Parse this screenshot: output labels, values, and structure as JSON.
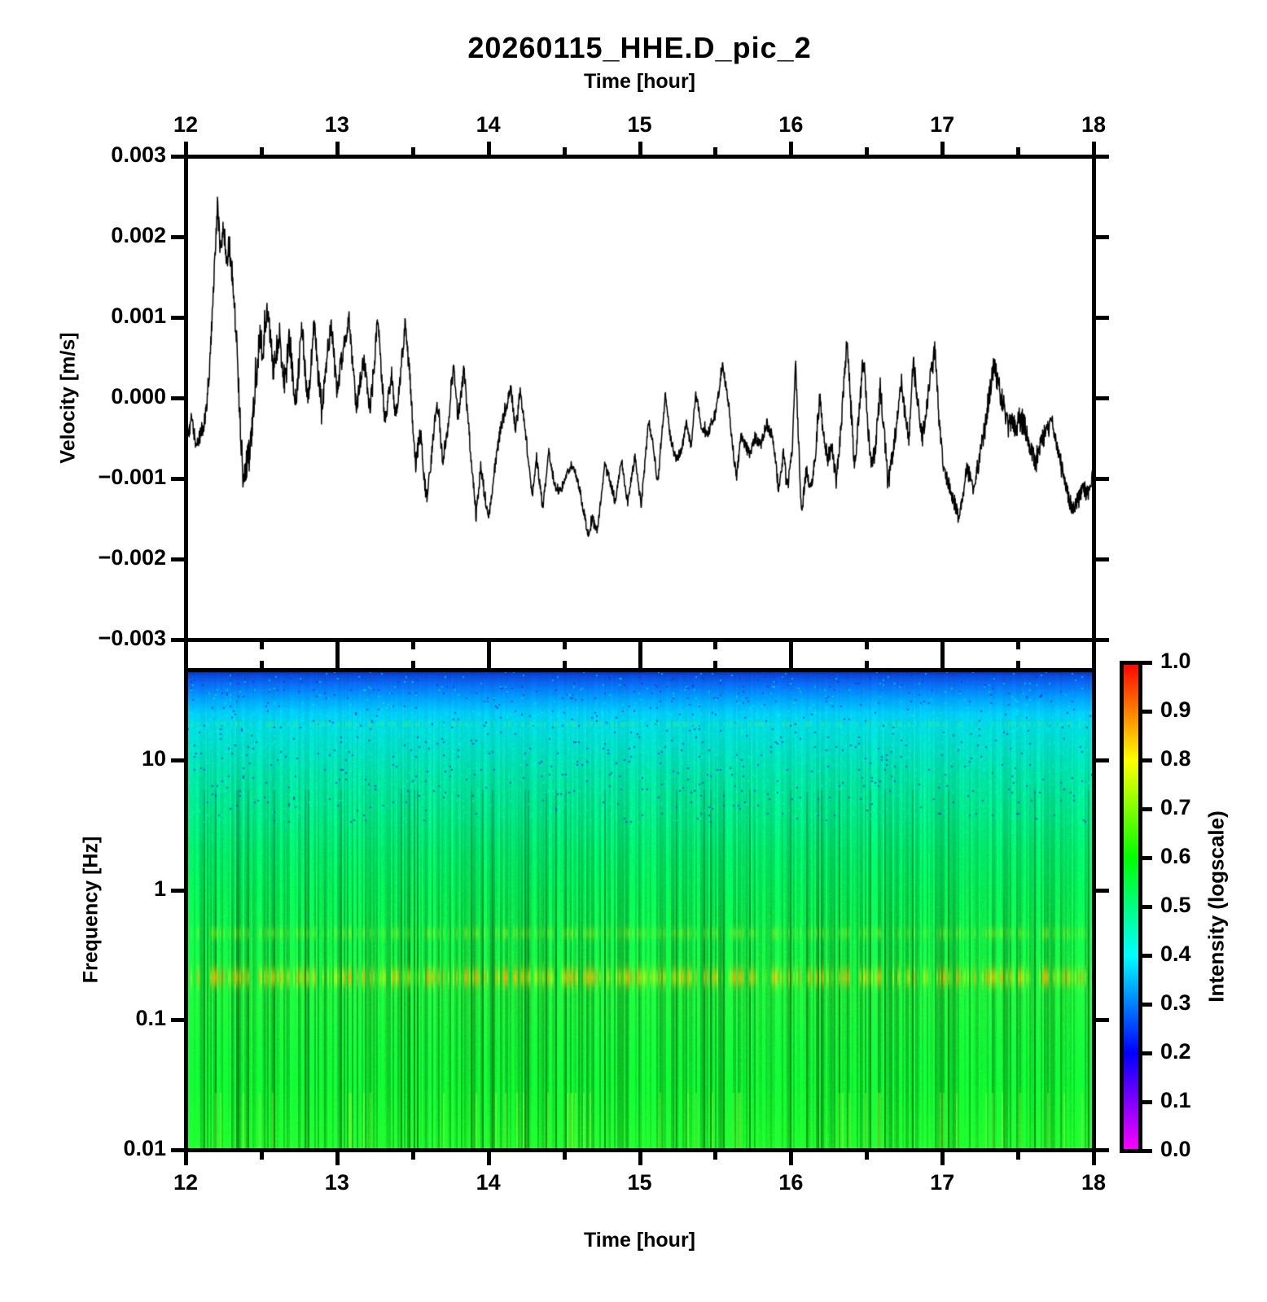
{
  "page": {
    "background": "#ffffff"
  },
  "chart_data": [
    {
      "id": "waveform",
      "type": "line",
      "title": "20260115_HHE.D_pic_2",
      "xlabel_top": "Time [hour]",
      "ylabel": "Velocity [m/s]",
      "x_range": [
        12,
        18
      ],
      "x_ticks": [
        12,
        13,
        14,
        15,
        16,
        17,
        18
      ],
      "x_minor_step": 0.5,
      "y_range": [
        -0.003,
        0.003
      ],
      "y_ticks": [
        {
          "value": 0.003,
          "label": "0.003"
        },
        {
          "value": 0.002,
          "label": "0.002"
        },
        {
          "value": 0.001,
          "label": "0.001"
        },
        {
          "value": 0.0,
          "label": "0.000"
        },
        {
          "value": -0.001,
          "label": "−0.001"
        },
        {
          "value": -0.002,
          "label": "−0.002"
        },
        {
          "value": -0.003,
          "label": "−0.003"
        }
      ],
      "line_color": "#000000",
      "keypoints": [
        [
          12.0,
          -0.0003
        ],
        [
          12.02,
          -0.00048
        ],
        [
          12.04,
          -0.00022
        ],
        [
          12.07,
          -0.00062
        ],
        [
          12.1,
          -0.00045
        ],
        [
          12.13,
          -0.00025
        ],
        [
          12.16,
          0.0004
        ],
        [
          12.18,
          0.0012
        ],
        [
          12.21,
          0.00239
        ],
        [
          12.23,
          0.00185
        ],
        [
          12.25,
          0.0021
        ],
        [
          12.27,
          0.00175
        ],
        [
          12.29,
          0.00188
        ],
        [
          12.32,
          0.00125
        ],
        [
          12.34,
          0.0006
        ],
        [
          12.36,
          -0.0003
        ],
        [
          12.38,
          -0.00101
        ],
        [
          12.41,
          -0.00075
        ],
        [
          12.43,
          -0.00055
        ],
        [
          12.46,
          0.0001
        ],
        [
          12.49,
          0.00075
        ],
        [
          12.51,
          0.0006
        ],
        [
          12.54,
          0.00119
        ],
        [
          12.56,
          0.0007
        ],
        [
          12.58,
          0.00028
        ],
        [
          12.6,
          0.0006
        ],
        [
          12.62,
          0.00082
        ],
        [
          12.64,
          0.00038
        ],
        [
          12.66,
          0.00016
        ],
        [
          12.68,
          0.00077
        ],
        [
          12.7,
          0.0004
        ],
        [
          12.73,
          -4e-05
        ],
        [
          12.75,
          0.00042
        ],
        [
          12.77,
          0.00094
        ],
        [
          12.79,
          0.0003
        ],
        [
          12.81,
          -9e-05
        ],
        [
          12.83,
          0.0005
        ],
        [
          12.85,
          0.00092
        ],
        [
          12.87,
          0.0004
        ],
        [
          12.9,
          -0.00014
        ],
        [
          12.93,
          0.0004
        ],
        [
          12.96,
          0.00096
        ],
        [
          12.98,
          0.0005
        ],
        [
          13.0,
          0.00011
        ],
        [
          13.04,
          0.00058
        ],
        [
          13.08,
          0.00102
        ],
        [
          13.1,
          0.0005
        ],
        [
          13.13,
          -0.00019
        ],
        [
          13.15,
          0.00018
        ],
        [
          13.18,
          0.00049
        ],
        [
          13.2,
          0.0001
        ],
        [
          13.22,
          -9e-05
        ],
        [
          13.25,
          0.0005
        ],
        [
          13.27,
          0.00102
        ],
        [
          13.29,
          0.0004
        ],
        [
          13.32,
          -0.00034
        ],
        [
          13.34,
          0.0
        ],
        [
          13.36,
          0.0003
        ],
        [
          13.39,
          -0.00024
        ],
        [
          13.42,
          0.0003
        ],
        [
          13.45,
          0.00092
        ],
        [
          13.48,
          0.0003
        ],
        [
          13.52,
          -0.00086
        ],
        [
          13.55,
          -0.00039
        ],
        [
          13.59,
          -0.00126
        ],
        [
          13.62,
          -0.0008
        ],
        [
          13.66,
          -4e-05
        ],
        [
          13.7,
          -0.00077
        ],
        [
          13.73,
          -0.0004
        ],
        [
          13.77,
          0.00039
        ],
        [
          13.8,
          -0.00024
        ],
        [
          13.84,
          0.00035
        ],
        [
          13.88,
          -0.0006
        ],
        [
          13.92,
          -0.00146
        ],
        [
          13.95,
          -0.00086
        ],
        [
          14.0,
          -0.00151
        ],
        [
          14.04,
          -0.0009
        ],
        [
          14.08,
          -0.0004
        ],
        [
          14.12,
          -0.0001
        ],
        [
          14.15,
          0.00011
        ],
        [
          14.18,
          -0.0004
        ],
        [
          14.21,
          0.0001
        ],
        [
          14.25,
          -0.0005
        ],
        [
          14.29,
          -0.00121
        ],
        [
          14.32,
          -0.00077
        ],
        [
          14.36,
          -0.00136
        ],
        [
          14.4,
          -0.00067
        ],
        [
          14.44,
          -0.0011
        ],
        [
          14.48,
          -0.00116
        ],
        [
          14.52,
          -0.00092
        ],
        [
          14.56,
          -0.00085
        ],
        [
          14.6,
          -0.0011
        ],
        [
          14.63,
          -0.0014
        ],
        [
          14.66,
          -0.0017
        ],
        [
          14.69,
          -0.0015
        ],
        [
          14.72,
          -0.00163
        ],
        [
          14.77,
          -0.00084
        ],
        [
          14.8,
          -0.001
        ],
        [
          14.84,
          -0.0013
        ],
        [
          14.88,
          -0.00075
        ],
        [
          14.92,
          -0.0013
        ],
        [
          14.97,
          -0.00072
        ],
        [
          15.01,
          -0.00135
        ],
        [
          15.06,
          -0.00028
        ],
        [
          15.09,
          -0.0006
        ],
        [
          15.12,
          -0.00107
        ],
        [
          15.17,
          6e-05
        ],
        [
          15.2,
          -0.00045
        ],
        [
          15.24,
          -0.00078
        ],
        [
          15.28,
          -0.00063
        ],
        [
          15.31,
          -0.0003
        ],
        [
          15.34,
          -0.00063
        ],
        [
          15.37,
          5e-05
        ],
        [
          15.41,
          -0.00035
        ],
        [
          15.45,
          -0.00046
        ],
        [
          15.5,
          -0.0002
        ],
        [
          15.55,
          0.00042
        ],
        [
          15.58,
          0.0
        ],
        [
          15.61,
          -0.0005
        ],
        [
          15.64,
          -0.001
        ],
        [
          15.67,
          -0.00048
        ],
        [
          15.7,
          -0.0006
        ],
        [
          15.73,
          -0.00072
        ],
        [
          15.76,
          -0.00048
        ],
        [
          15.8,
          -0.00058
        ],
        [
          15.84,
          -0.00032
        ],
        [
          15.88,
          -0.0005
        ],
        [
          15.92,
          -0.00115
        ],
        [
          15.95,
          -0.0007
        ],
        [
          15.98,
          -0.00111
        ],
        [
          16.01,
          -0.0006
        ],
        [
          16.03,
          0.00045
        ],
        [
          16.07,
          -0.00145
        ],
        [
          16.1,
          -0.0009
        ],
        [
          16.13,
          -0.0011
        ],
        [
          16.16,
          -0.00078
        ],
        [
          16.19,
          1e-05
        ],
        [
          16.22,
          -0.00055
        ],
        [
          16.24,
          -0.00078
        ],
        [
          16.27,
          -0.0006
        ],
        [
          16.3,
          -0.00104
        ],
        [
          16.33,
          -0.0004
        ],
        [
          16.37,
          0.00074
        ],
        [
          16.4,
          -0.0002
        ],
        [
          16.42,
          -0.00084
        ],
        [
          16.45,
          -0.0002
        ],
        [
          16.48,
          0.00054
        ],
        [
          16.51,
          -0.0004
        ],
        [
          16.53,
          -0.00088
        ],
        [
          16.56,
          -0.0006
        ],
        [
          16.59,
          0.00013
        ],
        [
          16.62,
          -0.0005
        ],
        [
          16.64,
          -0.00104
        ],
        [
          16.68,
          -0.0006
        ],
        [
          16.73,
          0.00021
        ],
        [
          16.76,
          -0.0003
        ],
        [
          16.78,
          -0.0005
        ],
        [
          16.81,
          0.00052
        ],
        [
          16.84,
          -0.0001
        ],
        [
          16.87,
          -0.0005
        ],
        [
          16.91,
          0.0001
        ],
        [
          16.95,
          0.00062
        ],
        [
          16.98,
          -0.0003
        ],
        [
          17.01,
          -0.00091
        ],
        [
          17.05,
          -0.0011
        ],
        [
          17.11,
          -0.00149
        ],
        [
          17.16,
          -0.00088
        ],
        [
          17.21,
          -0.00111
        ],
        [
          17.26,
          -0.0006
        ],
        [
          17.3,
          -0.0001
        ],
        [
          17.34,
          0.00039
        ],
        [
          17.38,
          0.0001
        ],
        [
          17.42,
          -0.0002
        ],
        [
          17.48,
          -0.0004
        ],
        [
          17.52,
          -0.00025
        ],
        [
          17.55,
          -0.00038
        ],
        [
          17.62,
          -0.00078
        ],
        [
          17.66,
          -0.00052
        ],
        [
          17.72,
          -0.00033
        ],
        [
          17.76,
          -0.0006
        ],
        [
          17.8,
          -0.0009
        ],
        [
          17.84,
          -0.00129
        ],
        [
          17.87,
          -0.00135
        ],
        [
          17.9,
          -0.00128
        ],
        [
          17.93,
          -0.00111
        ],
        [
          17.96,
          -0.0012
        ],
        [
          18.0,
          -0.0009
        ]
      ],
      "noise_envelope": [
        [
          12.0,
          9e-05
        ],
        [
          12.15,
          0.00012
        ],
        [
          12.3,
          0.00018
        ],
        [
          12.5,
          0.0002
        ],
        [
          12.7,
          0.00018
        ],
        [
          12.9,
          0.00016
        ],
        [
          13.1,
          0.00013
        ],
        [
          13.4,
          0.00012
        ],
        [
          13.7,
          0.0001
        ],
        [
          14.0,
          9e-05
        ],
        [
          14.3,
          7e-05
        ],
        [
          14.6,
          6e-05
        ],
        [
          14.9,
          6e-05
        ],
        [
          15.2,
          6e-05
        ],
        [
          15.5,
          7e-05
        ],
        [
          15.8,
          7e-05
        ],
        [
          16.1,
          9e-05
        ],
        [
          16.35,
          0.00012
        ],
        [
          16.6,
          0.00013
        ],
        [
          16.9,
          0.00012
        ],
        [
          17.1,
          0.0001
        ],
        [
          17.35,
          0.00015
        ],
        [
          17.55,
          0.00018
        ],
        [
          17.75,
          0.0001
        ],
        [
          17.95,
          0.00012
        ],
        [
          18.0,
          0.0001
        ]
      ]
    },
    {
      "id": "spectrogram",
      "type": "heatmap",
      "xlabel": "Time [hour]",
      "ylabel": "Frequency [Hz]",
      "x_range": [
        12,
        18
      ],
      "x_ticks": [
        12,
        13,
        14,
        15,
        16,
        17,
        18
      ],
      "x_minor_step": 0.5,
      "y_scale": "log",
      "y_range": [
        0.01,
        50
      ],
      "y_ticks": [
        {
          "value": 10,
          "label": "10"
        },
        {
          "value": 1,
          "label": "1"
        },
        {
          "value": 0.1,
          "label": "0.1"
        },
        {
          "value": 0.01,
          "label": "0.01"
        }
      ],
      "freq_color_stops": [
        [
          0.0,
          "#001878"
        ],
        [
          0.01,
          "#0a47d8"
        ],
        [
          0.03,
          "#0a6cf5"
        ],
        [
          0.06,
          "#00a2ff"
        ],
        [
          0.09,
          "#00cdf8"
        ],
        [
          0.12,
          "#00dcdf"
        ],
        [
          0.16,
          "#00dfc8"
        ],
        [
          0.22,
          "#00e2a6"
        ],
        [
          0.3,
          "#00e385"
        ],
        [
          0.38,
          "#00e266"
        ],
        [
          0.46,
          "#05e352"
        ],
        [
          0.54,
          "#0ee446"
        ],
        [
          0.62,
          "#15e63c"
        ],
        [
          0.7,
          "#1ae836"
        ],
        [
          0.78,
          "#12ea32"
        ],
        [
          0.86,
          "#0fee2e"
        ],
        [
          0.93,
          "#16f52c"
        ],
        [
          1.0,
          "#1fff2a"
        ]
      ],
      "stripe_profile": [
        [
          0,
          0.05
        ],
        [
          0.13,
          0.07
        ],
        [
          0.3,
          0.2
        ],
        [
          0.45,
          0.32
        ],
        [
          0.6,
          0.5
        ],
        [
          1,
          0.55
        ]
      ],
      "bands": [
        {
          "center": 0.641,
          "sigma": 0.02,
          "strength": 1.0,
          "colors": {
            "strong": "#ffaa00",
            "mid": "#ffe800",
            "weak": "#d0f000"
          },
          "note": "microseism band near 0.2 Hz"
        },
        {
          "center": 0.549,
          "sigma": 0.013,
          "strength": 0.45,
          "colors": {
            "strong": "#e0f000",
            "mid": "#c8ee00",
            "weak": "#b0e800"
          },
          "note": "weak band near 0.4-0.5 Hz"
        }
      ],
      "speckles": {
        "max_frac": 0.32,
        "dark_color": "#0040d8",
        "light_color": "#00ffe0"
      },
      "speckle_line": {
        "frac": 0.113,
        "half_width": 0.006,
        "color": "#30e89a"
      }
    },
    {
      "id": "colorbar",
      "type": "colorbar",
      "label": "Intensity (logscale)",
      "range": [
        0.0,
        1.0
      ],
      "ticks": [
        {
          "value": 1.0,
          "label": "1.0"
        },
        {
          "value": 0.9,
          "label": "0.9"
        },
        {
          "value": 0.8,
          "label": "0.8"
        },
        {
          "value": 0.7,
          "label": "0.7"
        },
        {
          "value": 0.6,
          "label": "0.6"
        },
        {
          "value": 0.5,
          "label": "0.5"
        },
        {
          "value": 0.4,
          "label": "0.4"
        },
        {
          "value": 0.3,
          "label": "0.3"
        },
        {
          "value": 0.2,
          "label": "0.2"
        },
        {
          "value": 0.1,
          "label": "0.1"
        },
        {
          "value": 0.0,
          "label": "0.0"
        }
      ],
      "stops": [
        [
          0.0,
          "#ff00ff"
        ],
        [
          0.1,
          "#8000ff"
        ],
        [
          0.2,
          "#0000ff"
        ],
        [
          0.3,
          "#0080ff"
        ],
        [
          0.4,
          "#00ffff"
        ],
        [
          0.5,
          "#00ff80"
        ],
        [
          0.6,
          "#00ff00"
        ],
        [
          0.7,
          "#80ff00"
        ],
        [
          0.8,
          "#ffff00"
        ],
        [
          0.9,
          "#ff8000"
        ],
        [
          1.0,
          "#ff0000"
        ]
      ]
    }
  ]
}
